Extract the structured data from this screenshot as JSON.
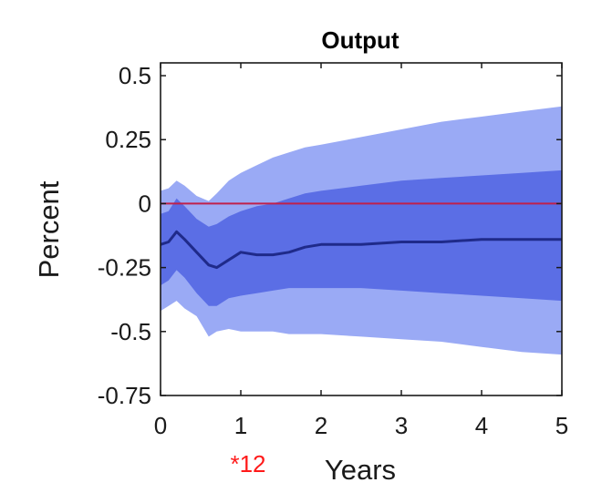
{
  "chart_data": {
    "type": "area",
    "title": "Output",
    "xlabel": "Years",
    "ylabel": "Percent",
    "xlim": [
      0,
      5
    ],
    "ylim": [
      -0.75,
      0.55
    ],
    "x_ticks": [
      0,
      1,
      2,
      3,
      4,
      5
    ],
    "x_tick_labels": [
      "0",
      "1",
      "2",
      "3",
      "4",
      "5"
    ],
    "y_ticks": [
      0.5,
      0.25,
      0,
      -0.25,
      -0.5,
      -0.75
    ],
    "y_tick_labels": [
      "0.5",
      "0.25",
      "0",
      "-0.25",
      "-0.5",
      "-0.75"
    ],
    "grid": false,
    "x": [
      0,
      0.1,
      0.2,
      0.3,
      0.45,
      0.6,
      0.7,
      0.85,
      1.0,
      1.2,
      1.4,
      1.6,
      1.8,
      2.0,
      2.5,
      3.0,
      3.5,
      4.0,
      4.5,
      5.0
    ],
    "series": [
      {
        "role": "outer_band",
        "color": "#9aaaf5",
        "upper": [
          0.05,
          0.06,
          0.09,
          0.07,
          0.03,
          0.01,
          0.04,
          0.09,
          0.12,
          0.15,
          0.18,
          0.2,
          0.22,
          0.23,
          0.26,
          0.29,
          0.32,
          0.34,
          0.36,
          0.38
        ],
        "lower": [
          -0.42,
          -0.4,
          -0.38,
          -0.41,
          -0.44,
          -0.52,
          -0.5,
          -0.49,
          -0.5,
          -0.5,
          -0.5,
          -0.51,
          -0.51,
          -0.51,
          -0.52,
          -0.53,
          -0.54,
          -0.56,
          -0.58,
          -0.59
        ]
      },
      {
        "role": "inner_band",
        "color": "#5b6ee5",
        "upper": [
          -0.04,
          -0.03,
          0.02,
          -0.01,
          -0.06,
          -0.09,
          -0.08,
          -0.05,
          -0.03,
          -0.01,
          0.0,
          0.02,
          0.04,
          0.05,
          0.07,
          0.09,
          0.1,
          0.11,
          0.12,
          0.13
        ],
        "lower": [
          -0.32,
          -0.3,
          -0.26,
          -0.29,
          -0.35,
          -0.4,
          -0.4,
          -0.37,
          -0.36,
          -0.35,
          -0.34,
          -0.33,
          -0.33,
          -0.33,
          -0.33,
          -0.34,
          -0.35,
          -0.36,
          -0.37,
          -0.38
        ]
      },
      {
        "role": "median_line",
        "color": "#1f2a8a",
        "values": [
          -0.16,
          -0.15,
          -0.11,
          -0.14,
          -0.19,
          -0.24,
          -0.25,
          -0.22,
          -0.19,
          -0.2,
          -0.2,
          -0.19,
          -0.17,
          -0.16,
          -0.16,
          -0.15,
          -0.15,
          -0.14,
          -0.14,
          -0.14
        ]
      }
    ],
    "reference_line": {
      "y": 0,
      "color": "#c0204a"
    },
    "annotation": {
      "text": "*12",
      "color": "#ff1a1a"
    }
  },
  "colors": {
    "axis": "#1a1a1a",
    "background": "#ffffff"
  }
}
